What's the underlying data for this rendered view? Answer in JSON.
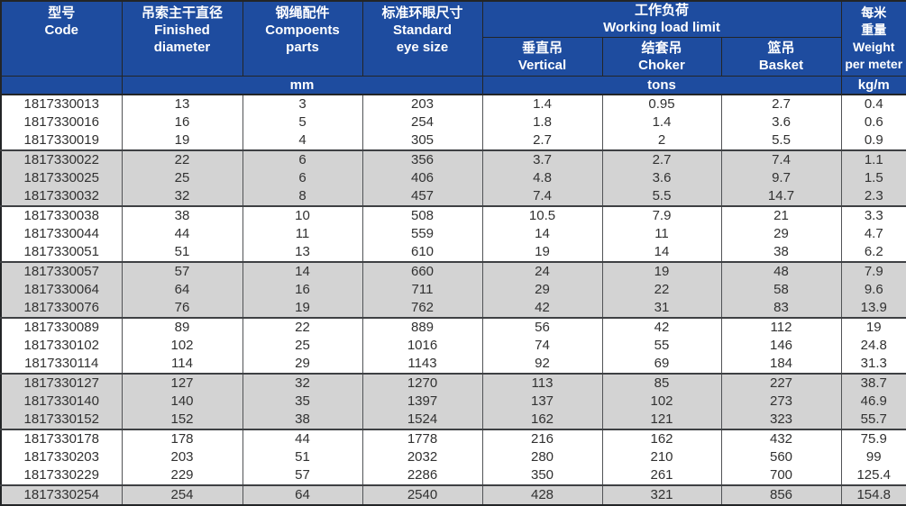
{
  "theme": {
    "header_bg": "#1e4c9f",
    "header_text": "#ffffff",
    "shaded_row_bg": "#d3d3d3",
    "data_text": "#313131",
    "grid_line": "#515356",
    "outer_frame": "#232527"
  },
  "table": {
    "header": {
      "code": "型号\nCode",
      "diameter": "吊索主干直径\nFinished\ndiameter",
      "parts": "钢绳配件\nCompoents\nparts",
      "eye_size": "标准环眼尺寸\nStandard\neye size",
      "working_load_limit": "工作负荷\nWorking load limit",
      "vertical": "垂直吊\nVertical",
      "choker": "结套吊\nChoker",
      "basket": "篮吊\nBasket",
      "weight": "每米\n重量\nWeight\nper meter"
    },
    "units": {
      "code": "",
      "mm": "mm",
      "tons": "tons",
      "kg_per_m": "kg/m"
    },
    "rows": [
      [
        "1817330013",
        "13",
        "3",
        "203",
        "1.4",
        "0.95",
        "2.7",
        "0.4"
      ],
      [
        "1817330016",
        "16",
        "5",
        "254",
        "1.8",
        "1.4",
        "3.6",
        "0.6"
      ],
      [
        "1817330019",
        "19",
        "4",
        "305",
        "2.7",
        "2",
        "5.5",
        "0.9"
      ],
      [
        "1817330022",
        "22",
        "6",
        "356",
        "3.7",
        "2.7",
        "7.4",
        "1.1"
      ],
      [
        "1817330025",
        "25",
        "6",
        "406",
        "4.8",
        "3.6",
        "9.7",
        "1.5"
      ],
      [
        "1817330032",
        "32",
        "8",
        "457",
        "7.4",
        "5.5",
        "14.7",
        "2.3"
      ],
      [
        "1817330038",
        "38",
        "10",
        "508",
        "10.5",
        "7.9",
        "21",
        "3.3"
      ],
      [
        "1817330044",
        "44",
        "11",
        "559",
        "14",
        "11",
        "29",
        "4.7"
      ],
      [
        "1817330051",
        "51",
        "13",
        "610",
        "19",
        "14",
        "38",
        "6.2"
      ],
      [
        "1817330057",
        "57",
        "14",
        "660",
        "24",
        "19",
        "48",
        "7.9"
      ],
      [
        "1817330064",
        "64",
        "16",
        "711",
        "29",
        "22",
        "58",
        "9.6"
      ],
      [
        "1817330076",
        "76",
        "19",
        "762",
        "42",
        "31",
        "83",
        "13.9"
      ],
      [
        "1817330089",
        "89",
        "22",
        "889",
        "56",
        "42",
        "112",
        "19"
      ],
      [
        "1817330102",
        "102",
        "25",
        "1016",
        "74",
        "55",
        "146",
        "24.8"
      ],
      [
        "1817330114",
        "114",
        "29",
        "1143",
        "92",
        "69",
        "184",
        "31.3"
      ],
      [
        "1817330127",
        "127",
        "32",
        "1270",
        "113",
        "85",
        "227",
        "38.7"
      ],
      [
        "1817330140",
        "140",
        "35",
        "1397",
        "137",
        "102",
        "273",
        "46.9"
      ],
      [
        "1817330152",
        "152",
        "38",
        "1524",
        "162",
        "121",
        "323",
        "55.7"
      ],
      [
        "1817330178",
        "178",
        "44",
        "1778",
        "216",
        "162",
        "432",
        "75.9"
      ],
      [
        "1817330203",
        "203",
        "51",
        "2032",
        "280",
        "210",
        "560",
        "99"
      ],
      [
        "1817330229",
        "229",
        "57",
        "2286",
        "350",
        "261",
        "700",
        "125.4"
      ],
      [
        "1817330254",
        "254",
        "64",
        "2540",
        "428",
        "321",
        "856",
        "154.8"
      ]
    ]
  }
}
